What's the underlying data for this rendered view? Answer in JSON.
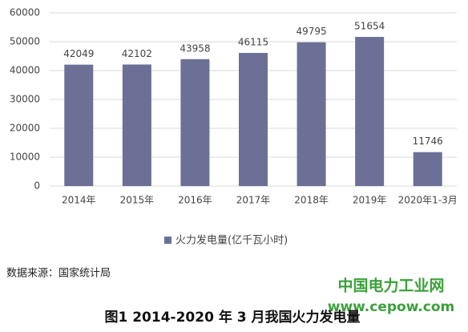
{
  "chart_data": {
    "type": "bar",
    "title": "图1 2014-2020 年 3 月我国火力发电量",
    "source": "数据来源：国家统计局",
    "watermark": [
      "中国电力工业网",
      "www.cepow.com"
    ],
    "categories": [
      "2014年",
      "2015年",
      "2016年",
      "2017年",
      "2018年",
      "2019年",
      "2020年1-3月"
    ],
    "series": [
      {
        "name": "火力发电量(亿千瓦小时)",
        "color": "#6c7096",
        "values": [
          42049,
          42102,
          43958,
          46115,
          49795,
          51654,
          11746
        ]
      }
    ],
    "ylim": [
      0,
      60000
    ],
    "yticks": [
      0,
      10000,
      20000,
      30000,
      40000,
      50000,
      60000
    ],
    "grid": true,
    "legend": "bottom"
  }
}
